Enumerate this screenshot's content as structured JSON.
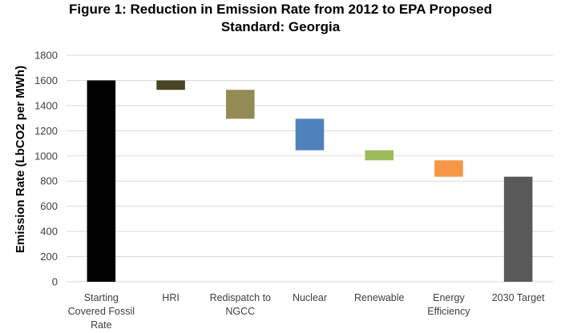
{
  "chart_data": {
    "type": "bar",
    "subtype": "waterfall",
    "title": "Figure 1: Reduction in Emission Rate from 2012 to EPA Proposed Standard: Georgia",
    "title_lines": [
      "Figure 1: Reduction in Emission Rate from 2012 to EPA Proposed",
      "Standard: Georgia"
    ],
    "ylabel": "Emission Rate (LbCO2 per MWh)",
    "xlabel": "",
    "ylim": [
      0,
      1800
    ],
    "yticks": [
      0,
      200,
      400,
      600,
      800,
      1000,
      1200,
      1400,
      1600,
      1800
    ],
    "grid": true,
    "legend": "none",
    "categories": [
      {
        "label_lines": [
          "Starting",
          "Covered Fossil",
          "Rate"
        ],
        "low": 0,
        "high": 1600,
        "color": "#000000"
      },
      {
        "label_lines": [
          "HRI"
        ],
        "low": 1525,
        "high": 1600,
        "color": "#4a4426"
      },
      {
        "label_lines": [
          "Redispatch to",
          "NGCC"
        ],
        "low": 1295,
        "high": 1525,
        "color": "#948a54"
      },
      {
        "label_lines": [
          "Nuclear"
        ],
        "low": 1045,
        "high": 1295,
        "color": "#4f81bd"
      },
      {
        "label_lines": [
          "Renewable"
        ],
        "low": 965,
        "high": 1045,
        "color": "#9bbb59"
      },
      {
        "label_lines": [
          "Energy",
          "Efficiency"
        ],
        "low": 835,
        "high": 965,
        "color": "#f79646"
      },
      {
        "label_lines": [
          "2030 Target"
        ],
        "low": 0,
        "high": 835,
        "color": "#595959"
      }
    ]
  }
}
